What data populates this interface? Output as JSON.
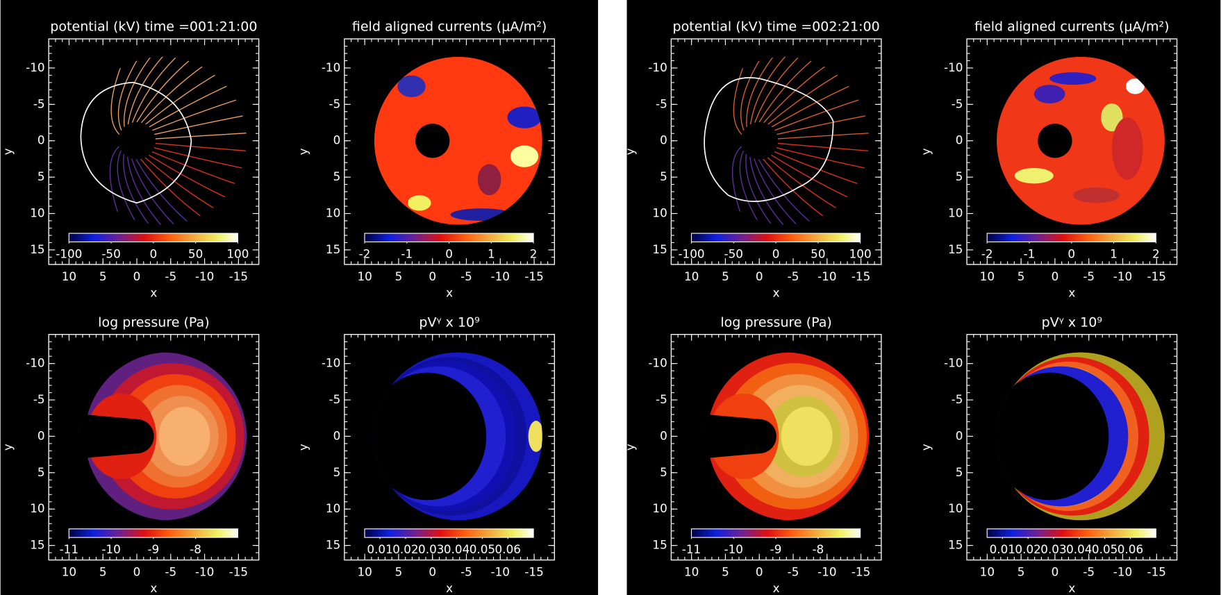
{
  "axes": {
    "xlabel": "x",
    "ylabel": "y",
    "xlim": [
      13,
      -18
    ],
    "ylim": [
      -14,
      17
    ],
    "xticks": [
      10,
      5,
      0,
      -5,
      -10,
      -15
    ],
    "yticks": [
      -10,
      -5,
      0,
      5,
      10,
      15
    ]
  },
  "panels": [
    {
      "plots": [
        {
          "type": "contour",
          "title": "potential (kV) time =001:21:00",
          "colorbar": {
            "lim": [
              -100,
              100
            ],
            "ticks": [
              -100,
              -50,
              0,
              50,
              100
            ]
          }
        },
        {
          "type": "currents",
          "title": "field aligned currents (μA/m²)",
          "colorbar": {
            "lim": [
              -2,
              2
            ],
            "ticks": [
              -2,
              -1,
              0,
              1,
              2
            ]
          }
        },
        {
          "type": "pressure",
          "title": "log pressure (Pa)",
          "colorbar": {
            "lim": [
              -11,
              -7
            ],
            "ticks": [
              -11,
              -10,
              -9,
              -8
            ]
          }
        },
        {
          "type": "entropy",
          "title": "pVᵞ x 10⁹",
          "colorbar": {
            "lim": [
              0.004,
              0.07
            ],
            "ticks": [
              0.01,
              0.02,
              0.03,
              0.04,
              0.05,
              0.06
            ]
          }
        }
      ]
    },
    {
      "plots": [
        {
          "type": "contour",
          "title": "potential (kV) time =002:21:00",
          "colorbar": {
            "lim": [
              -100,
              100
            ],
            "ticks": [
              -100,
              -50,
              0,
              50,
              100
            ]
          }
        },
        {
          "type": "currents",
          "title": "field aligned currents (μA/m²)",
          "colorbar": {
            "lim": [
              -2,
              2
            ],
            "ticks": [
              -2,
              -1,
              0,
              1,
              2
            ]
          }
        },
        {
          "type": "pressure",
          "title": "log pressure (Pa)",
          "colorbar": {
            "lim": [
              -11,
              -7
            ],
            "ticks": [
              -11,
              -10,
              -9,
              -8
            ]
          }
        },
        {
          "type": "entropy",
          "title": "pVᵞ x 10⁹",
          "colorbar": {
            "lim": [
              0.004,
              0.07
            ],
            "ticks": [
              0.01,
              0.02,
              0.03,
              0.04,
              0.05,
              0.06
            ]
          }
        }
      ]
    }
  ]
}
